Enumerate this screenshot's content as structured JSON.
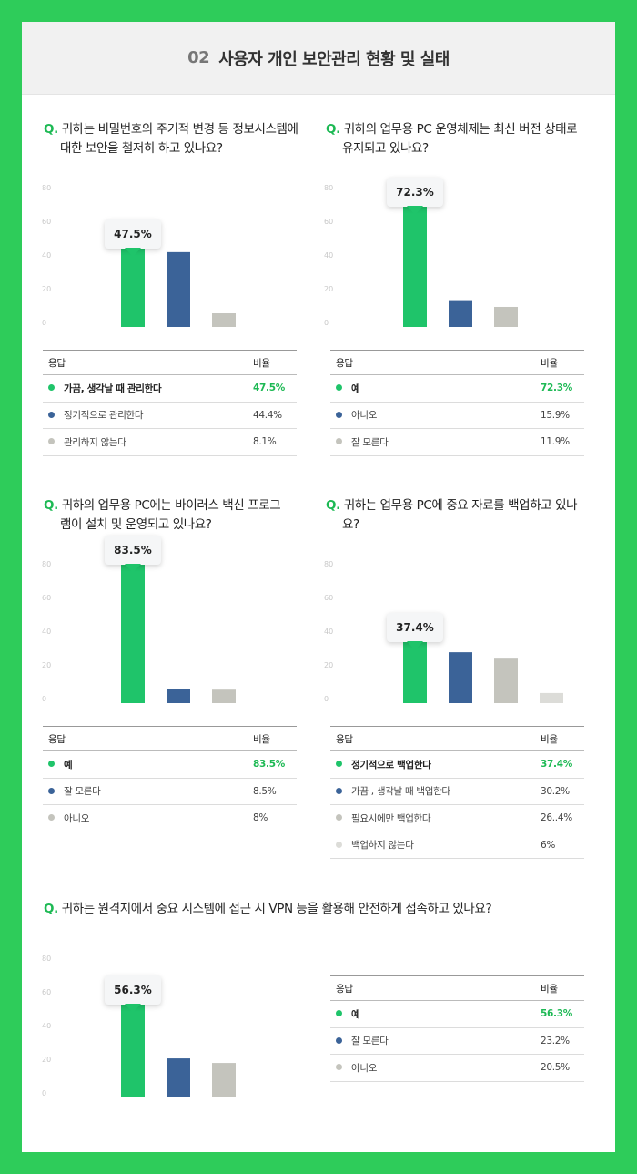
{
  "header": {
    "number": "02",
    "title": "사용자 개인 보안관리 현황 및 실태"
  },
  "table_headers": {
    "response": "응답",
    "ratio": "비율"
  },
  "colors": {
    "green": "#1fc46a",
    "blue": "#3b6398",
    "gray": "#c4c4bd",
    "lightgray": "#dcdcd8"
  },
  "chart_data": [
    {
      "type": "bar",
      "question_mark": "Q.",
      "question": "귀하는 비밀번호의 주기적 변경 등 정보시스템에 대한 보안을 철저히 하고 있나요?",
      "yticks": [
        80,
        60,
        40,
        20,
        0
      ],
      "ylim": [
        0,
        80
      ],
      "callout": "47.5%",
      "categories": [
        "가끔, 생각날 때 관리한다",
        "정기적으로 관리한다",
        "관리하지 않는다"
      ],
      "values": [
        47.5,
        44.4,
        8.1
      ],
      "labels": [
        "47.5%",
        "44.4%",
        "8.1%"
      ],
      "colors": [
        "#1fc46a",
        "#3b6398",
        "#c4c4bd"
      ]
    },
    {
      "type": "bar",
      "question_mark": "Q.",
      "question": "귀하의 업무용 PC 운영체제는 최신 버전 상태로 유지되고 있나요?",
      "yticks": [
        80,
        60,
        40,
        20,
        0
      ],
      "ylim": [
        0,
        80
      ],
      "callout": "72.3%",
      "categories": [
        "예",
        "아니오",
        "잘 모른다"
      ],
      "values": [
        72.3,
        15.9,
        11.9
      ],
      "labels": [
        "72.3%",
        "15.9%",
        "11.9%"
      ],
      "colors": [
        "#1fc46a",
        "#3b6398",
        "#c4c4bd"
      ]
    },
    {
      "type": "bar",
      "question_mark": "Q.",
      "question": "귀하의 업무용 PC에는 바이러스 백신 프로그램이 설치 및 운영되고 있나요?",
      "yticks": [
        80,
        60,
        40,
        20,
        0
      ],
      "ylim": [
        0,
        80
      ],
      "callout": "83.5%",
      "categories": [
        "예",
        "잘 모른다",
        "아니오"
      ],
      "values": [
        83.5,
        8.5,
        8
      ],
      "labels": [
        "83.5%",
        "8.5%",
        "8%"
      ],
      "colors": [
        "#1fc46a",
        "#3b6398",
        "#c4c4bd"
      ]
    },
    {
      "type": "bar",
      "question_mark": "Q.",
      "question": "귀하는 업무용 PC에 중요 자료를 백업하고 있나요?",
      "yticks": [
        80,
        60,
        40,
        20,
        0
      ],
      "ylim": [
        0,
        80
      ],
      "callout": "37.4%",
      "categories": [
        "정기적으로 백업한다",
        "가끔 , 생각날 때 백업한다",
        "필요시에만 백업한다",
        "백업하지 않는다"
      ],
      "values": [
        37.4,
        30.2,
        26.4,
        6
      ],
      "labels": [
        "37.4%",
        "30.2%",
        "26..4%",
        "6%"
      ],
      "colors": [
        "#1fc46a",
        "#3b6398",
        "#c4c4bd",
        "#dcdcd8"
      ]
    },
    {
      "type": "bar",
      "question_mark": "Q.",
      "question": "귀하는 원격지에서 중요 시스템에 접근 시 VPN 등을 활용해 안전하게 접속하고 있나요?",
      "yticks": [
        80,
        60,
        40,
        20,
        0
      ],
      "ylim": [
        0,
        80
      ],
      "callout": "56.3%",
      "categories": [
        "예",
        "잘 모른다",
        "아니오"
      ],
      "values": [
        56.3,
        23.2,
        20.5
      ],
      "labels": [
        "56.3%",
        "23.2%",
        "20.5%"
      ],
      "colors": [
        "#1fc46a",
        "#3b6398",
        "#c4c4bd"
      ]
    }
  ]
}
